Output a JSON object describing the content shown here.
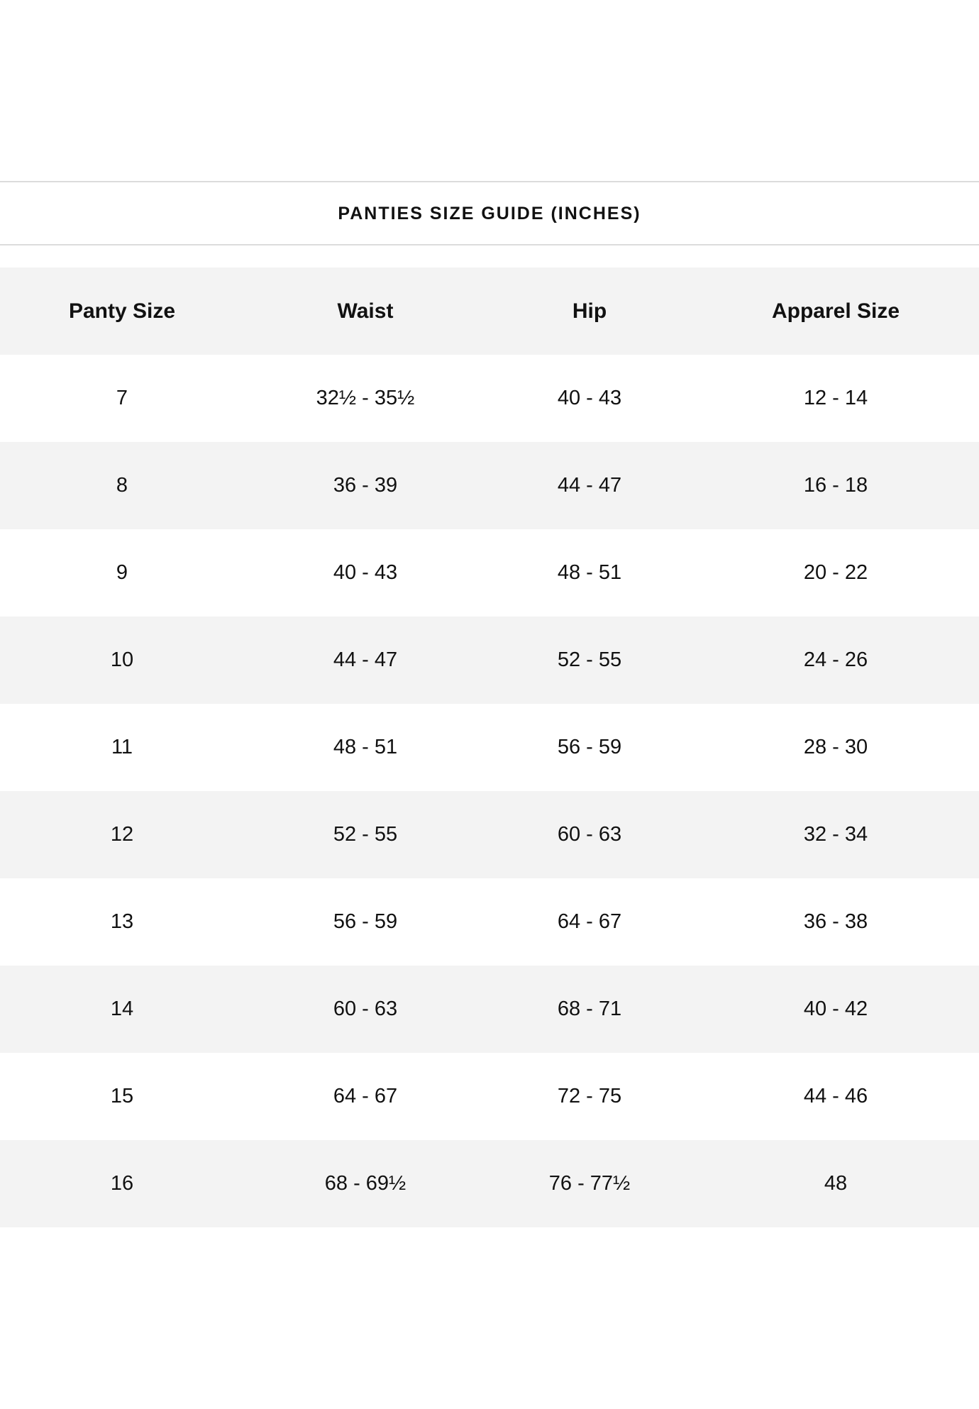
{
  "title": "PANTIES SIZE GUIDE (INCHES)",
  "table": {
    "headers": [
      "Panty Size",
      "Waist",
      "Hip",
      "Apparel Size"
    ],
    "rows": [
      [
        "7",
        "32½ - 35½",
        "40 - 43",
        "12 - 14"
      ],
      [
        "8",
        "36 - 39",
        "44 - 47",
        "16 - 18"
      ],
      [
        "9",
        "40 - 43",
        "48 - 51",
        "20 - 22"
      ],
      [
        "10",
        "44 - 47",
        "52 - 55",
        "24 - 26"
      ],
      [
        "11",
        "48 - 51",
        "56 - 59",
        "28 - 30"
      ],
      [
        "12",
        "52 - 55",
        "60 - 63",
        "32 - 34"
      ],
      [
        "13",
        "56 - 59",
        "64 - 67",
        "36 - 38"
      ],
      [
        "14",
        "60 - 63",
        "68 - 71",
        "40 - 42"
      ],
      [
        "15",
        "64 - 67",
        "72 - 75",
        "44 - 46"
      ],
      [
        "16",
        "68 - 69½",
        "76 - 77½",
        "48"
      ]
    ]
  },
  "colors": {
    "row_shade": "#f3f3f3",
    "rule": "#dcdcdc",
    "text": "#111111"
  }
}
